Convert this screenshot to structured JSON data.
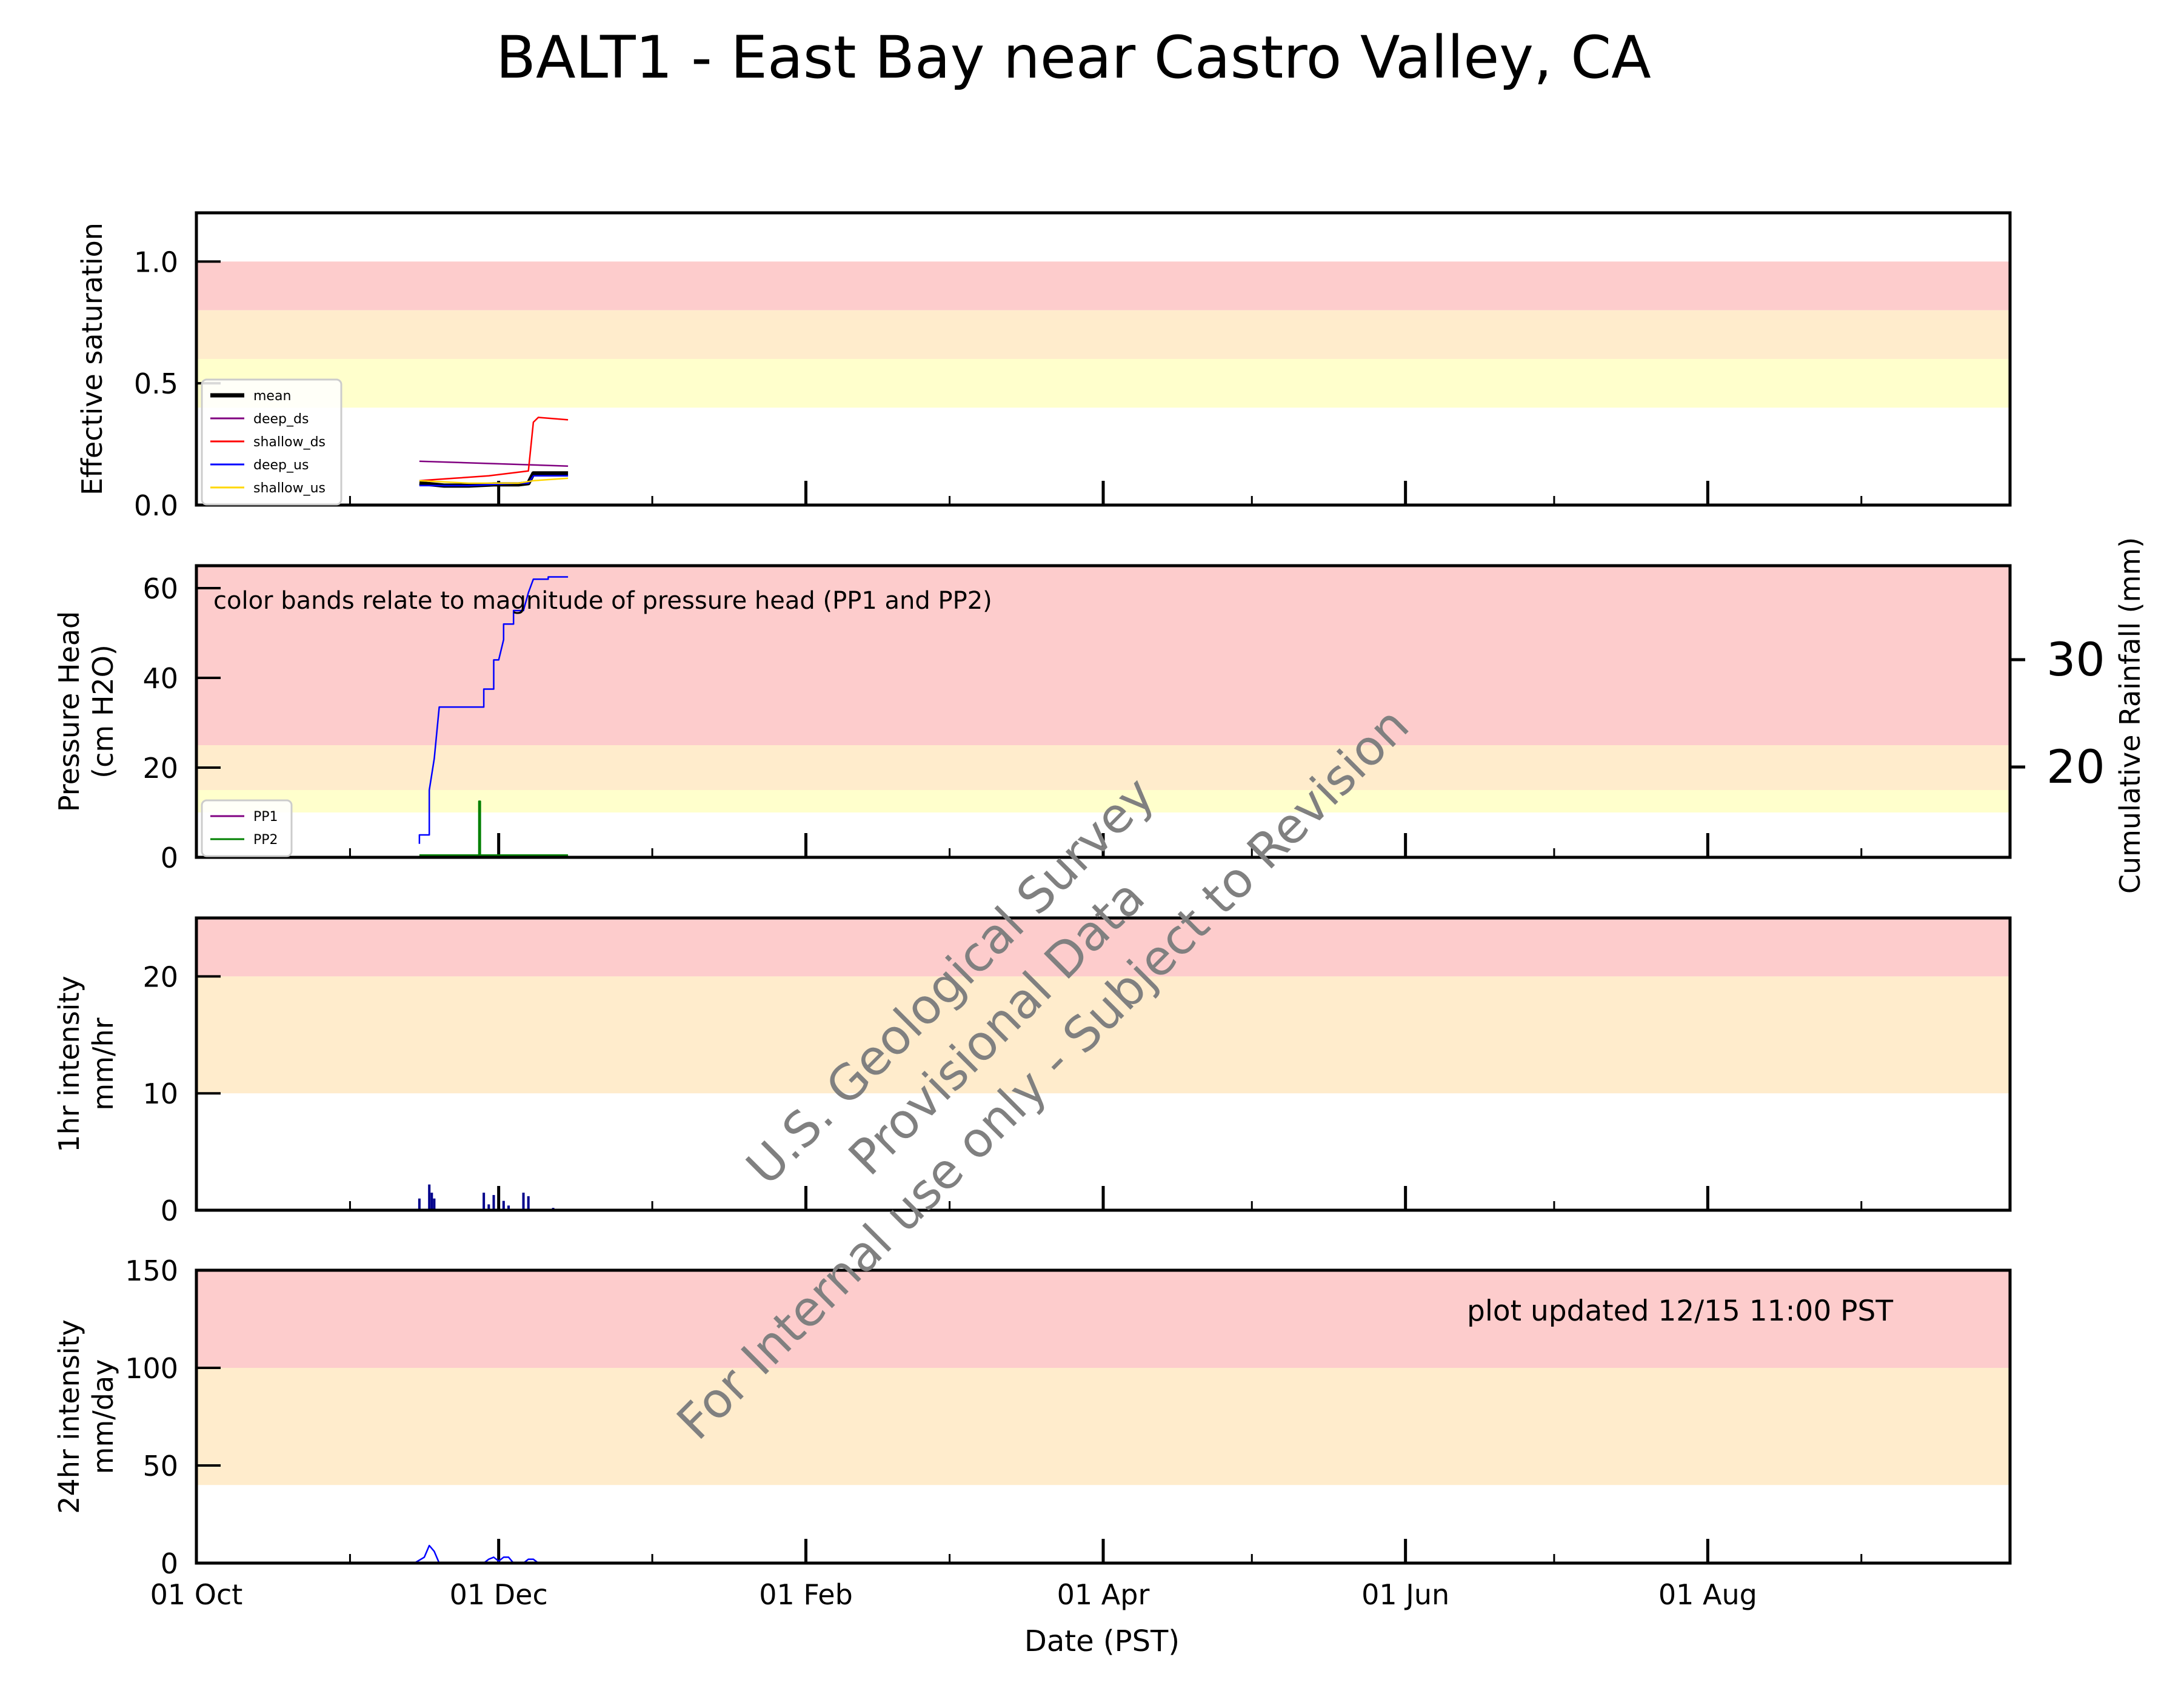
{
  "title": "BALT1 - East Bay near Castro Valley, CA",
  "xlabel": "Date (PST)",
  "x_ticks": [
    "01 Oct",
    "01 Dec",
    "01 Feb",
    "01 Apr",
    "01 Jun",
    "01 Aug"
  ],
  "watermark": [
    "U.S. Geological Survey",
    "Provisional Data",
    "For Internal use only - Subject to Revision"
  ],
  "update_note": "plot updated 12/15 11:00  PST",
  "colors": {
    "red_band": "#fdcccc",
    "orange_band": "#ffeccc",
    "yellow_band": "#ffffcc"
  },
  "chart_data": [
    {
      "type": "line",
      "ylabel": "Effective saturation",
      "ylim": [
        0,
        1.2
      ],
      "yticks": [
        "0.0",
        "0.5",
        "1.0"
      ],
      "bands": [
        {
          "from": 0.8,
          "to": 1.0,
          "color": "red"
        },
        {
          "from": 0.6,
          "to": 0.8,
          "color": "orange"
        },
        {
          "from": 0.4,
          "to": 0.6,
          "color": "yellow"
        }
      ],
      "legend": {
        "placement": "lower-left",
        "entries": [
          "mean",
          "deep_ds",
          "shallow_ds",
          "deep_us",
          "shallow_us"
        ]
      },
      "series": [
        {
          "name": "mean",
          "color": "#000000",
          "width": 7,
          "x": [
            "2019-11-15",
            "2019-11-20",
            "2019-11-25",
            "2019-11-30",
            "2019-12-05",
            "2019-12-07",
            "2019-12-08",
            "2019-12-15"
          ],
          "y": [
            0.09,
            0.08,
            0.08,
            0.085,
            0.085,
            0.09,
            0.13,
            0.13
          ]
        },
        {
          "name": "deep_ds",
          "color": "#800080",
          "width": 2.5,
          "x": [
            "2019-11-15",
            "2019-12-15"
          ],
          "y": [
            0.18,
            0.16
          ]
        },
        {
          "name": "shallow_ds",
          "color": "#ff0000",
          "width": 2.5,
          "x": [
            "2019-11-15",
            "2019-11-22",
            "2019-11-29",
            "2019-12-03",
            "2019-12-07",
            "2019-12-08",
            "2019-12-09",
            "2019-12-15"
          ],
          "y": [
            0.1,
            0.11,
            0.12,
            0.13,
            0.14,
            0.34,
            0.36,
            0.35
          ]
        },
        {
          "name": "deep_us",
          "color": "#0000ff",
          "width": 2.5,
          "x": [
            "2019-11-15",
            "2019-11-25",
            "2019-12-05",
            "2019-12-07",
            "2019-12-08",
            "2019-12-15"
          ],
          "y": [
            0.08,
            0.08,
            0.09,
            0.09,
            0.12,
            0.12
          ]
        },
        {
          "name": "shallow_us",
          "color": "#ffd700",
          "width": 2.5,
          "x": [
            "2019-11-15",
            "2019-11-25",
            "2019-12-05",
            "2019-12-08",
            "2019-12-15"
          ],
          "y": [
            0.1,
            0.09,
            0.09,
            0.1,
            0.11
          ]
        }
      ]
    },
    {
      "type": "line",
      "ylabel": "Pressure Head\n(cm H2O)",
      "ylim": [
        0,
        65
      ],
      "yticks": [
        "0",
        "20",
        "40",
        "60"
      ],
      "y2label": "Cumulative Rainfall (mm)",
      "y2ticks": [
        "20",
        "30"
      ],
      "annotation": "color bands relate to magnitude of pressure head (PP1 and PP2)",
      "bands": [
        {
          "from": 25,
          "to": 65,
          "color": "red"
        },
        {
          "from": 15,
          "to": 25,
          "color": "orange"
        },
        {
          "from": 10,
          "to": 15,
          "color": "yellow"
        }
      ],
      "legend": {
        "placement": "lower-left",
        "entries": [
          "PP1",
          "PP2"
        ]
      },
      "series": [
        {
          "name": "PP1",
          "color": "#800080",
          "width": 2.5,
          "x": [
            "2019-11-15",
            "2019-12-15"
          ],
          "y": [
            0.3,
            0.3
          ]
        },
        {
          "name": "PP2",
          "color": "#008000",
          "width": 2.5,
          "x": [
            "2019-11-15",
            "2019-11-27",
            "2019-11-27",
            "2019-11-27.3",
            "2019-11-27.3",
            "2019-12-15"
          ],
          "y": [
            0.5,
            0.5,
            12.5,
            12.5,
            0.5,
            0.5
          ]
        },
        {
          "name": "Cumulative Rainfall",
          "color": "#0000ff",
          "width": 2.5,
          "x": [
            "2019-11-15",
            "2019-11-15",
            "2019-11-17",
            "2019-11-17",
            "2019-11-18",
            "2019-11-19",
            "2019-11-28",
            "2019-11-28",
            "2019-11-30",
            "2019-11-30",
            "2019-12-01",
            "2019-12-02",
            "2019-12-02",
            "2019-12-04",
            "2019-12-04",
            "2019-12-06",
            "2019-12-07",
            "2019-12-08",
            "2019-12-11",
            "2019-12-11",
            "2019-12-15"
          ],
          "y": [
            3,
            5,
            5,
            15,
            22,
            33.5,
            33.5,
            37.5,
            37.5,
            44,
            44,
            48.5,
            52,
            52,
            55,
            55,
            59,
            62,
            62,
            62.5,
            62.5
          ]
        }
      ]
    },
    {
      "type": "bar",
      "ylabel": "1hr intensity\nmm/hr",
      "ylim": [
        0,
        25
      ],
      "yticks": [
        "0",
        "10",
        "20"
      ],
      "bands": [
        {
          "from": 20,
          "to": 25,
          "color": "red"
        },
        {
          "from": 10,
          "to": 20,
          "color": "orange"
        }
      ],
      "series": [
        {
          "name": "1hr",
          "color": "#00008b",
          "x": [
            "2019-11-15",
            "2019-11-17",
            "2019-11-17.5",
            "2019-11-18",
            "2019-11-28",
            "2019-11-29",
            "2019-11-30",
            "2019-12-02",
            "2019-12-03",
            "2019-12-06",
            "2019-12-07",
            "2019-12-12"
          ],
          "y": [
            1.0,
            2.2,
            1.5,
            1.0,
            1.5,
            0.5,
            1.3,
            0.8,
            0.4,
            1.5,
            1.2,
            0.2
          ]
        }
      ]
    },
    {
      "type": "line",
      "ylabel": "24hr intensity\nmm/day",
      "ylim": [
        0,
        150
      ],
      "yticks": [
        "0",
        "50",
        "100",
        "150"
      ],
      "bands": [
        {
          "from": 100,
          "to": 150,
          "color": "red"
        },
        {
          "from": 40,
          "to": 100,
          "color": "orange"
        }
      ],
      "series": [
        {
          "name": "24hr",
          "color": "#0000ff",
          "width": 2.5,
          "x": [
            "2019-11-14",
            "2019-11-16",
            "2019-11-17",
            "2019-11-18",
            "2019-11-19",
            "2019-11-20",
            "2019-11-28",
            "2019-11-29",
            "2019-11-30",
            "2019-12-01",
            "2019-12-02",
            "2019-12-03",
            "2019-12-04",
            "2019-12-06",
            "2019-12-07",
            "2019-12-08",
            "2019-12-09",
            "2019-12-12"
          ],
          "y": [
            0,
            3,
            9,
            6,
            0,
            0,
            0,
            2,
            3,
            1,
            3,
            3,
            0,
            0,
            2,
            2,
            0,
            0
          ]
        }
      ]
    }
  ]
}
